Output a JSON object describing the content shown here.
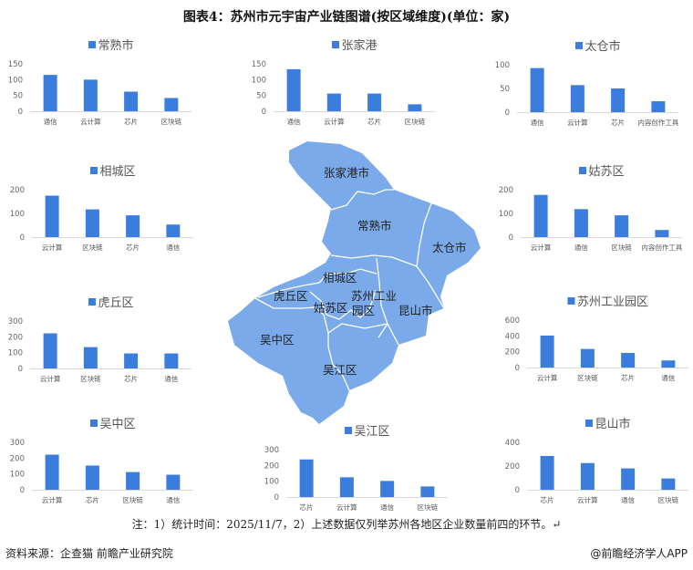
{
  "title": "图表4：苏州市元宇宙产业链图谱(按区域维度)(单位：家)",
  "colors": {
    "bar": "#3b7ddd",
    "map_fill": "#7aaaea",
    "map_border": "#ffffff"
  },
  "map": {
    "labels": [
      "张家港市",
      "常熟市",
      "太仓市",
      "相城区",
      "虎丘区",
      "姑苏区",
      "苏州工业",
      "园区",
      "昆山市",
      "吴中区",
      "吴江区"
    ]
  },
  "chart_data": [
    {
      "type": "bar",
      "title": "常熟市",
      "categories": [
        "通信",
        "云计算",
        "芯片",
        "区块链"
      ],
      "values": [
        115,
        100,
        62,
        42
      ],
      "ylim": [
        0,
        150
      ],
      "yticks": [
        0,
        50,
        100,
        150
      ]
    },
    {
      "type": "bar",
      "title": "张家港",
      "categories": [
        "通信",
        "云计算",
        "芯片",
        "区块链"
      ],
      "values": [
        133,
        56,
        56,
        22
      ],
      "ylim": [
        0,
        150
      ],
      "yticks": [
        0,
        50,
        100,
        150
      ]
    },
    {
      "type": "bar",
      "title": "太仓市",
      "categories": [
        "通信",
        "云计算",
        "芯片",
        "内容创作工具"
      ],
      "values": [
        93,
        57,
        50,
        23
      ],
      "ylim": [
        0,
        100
      ],
      "yticks": [
        0,
        50,
        100
      ]
    },
    {
      "type": "bar",
      "title": "相城区",
      "categories": [
        "云计算",
        "区块链",
        "芯片",
        "通信"
      ],
      "values": [
        175,
        117,
        92,
        53
      ],
      "ylim": [
        0,
        200
      ],
      "yticks": [
        0,
        100,
        200
      ]
    },
    {
      "type": "bar",
      "title": "姑苏区",
      "categories": [
        "云计算",
        "通信",
        "区块链",
        "内容创作工具"
      ],
      "values": [
        178,
        118,
        92,
        30
      ],
      "ylim": [
        0,
        200
      ],
      "yticks": [
        0,
        100,
        200
      ]
    },
    {
      "type": "bar",
      "title": "虎丘区",
      "categories": [
        "云计算",
        "区块链",
        "芯片",
        "通信"
      ],
      "values": [
        222,
        135,
        95,
        95
      ],
      "ylim": [
        0,
        300
      ],
      "yticks": [
        0,
        100,
        200,
        300
      ]
    },
    {
      "type": "bar",
      "title": "苏州工业园区",
      "categories": [
        "云计算",
        "区块链",
        "芯片",
        "通信"
      ],
      "values": [
        405,
        235,
        185,
        90
      ],
      "ylim": [
        0,
        600
      ],
      "yticks": [
        0,
        200,
        400,
        600
      ]
    },
    {
      "type": "bar",
      "title": "吴中区",
      "categories": [
        "云计算",
        "芯片",
        "区块链",
        "通信"
      ],
      "values": [
        222,
        153,
        112,
        95
      ],
      "ylim": [
        0,
        300
      ],
      "yticks": [
        0,
        100,
        200,
        300
      ]
    },
    {
      "type": "bar",
      "title": "吴江区",
      "categories": [
        "芯片",
        "云计算",
        "通信",
        "区块链"
      ],
      "values": [
        238,
        125,
        102,
        67
      ],
      "ylim": [
        0,
        300
      ],
      "yticks": [
        0,
        100,
        200,
        300
      ]
    },
    {
      "type": "bar",
      "title": "昆山市",
      "categories": [
        "芯片",
        "云计算",
        "通信",
        "区块链"
      ],
      "values": [
        285,
        225,
        180,
        95
      ],
      "ylim": [
        0,
        400
      ],
      "yticks": [
        0,
        200,
        400
      ]
    }
  ],
  "note": "注：1）统计时间：2025/11/7，2）上述数据仅列举苏州各地区企业数量前四的环节。↵",
  "footer": {
    "source": "资料来源：企查猫 前瞻产业研究院",
    "brand": "@前瞻经济学人APP"
  }
}
